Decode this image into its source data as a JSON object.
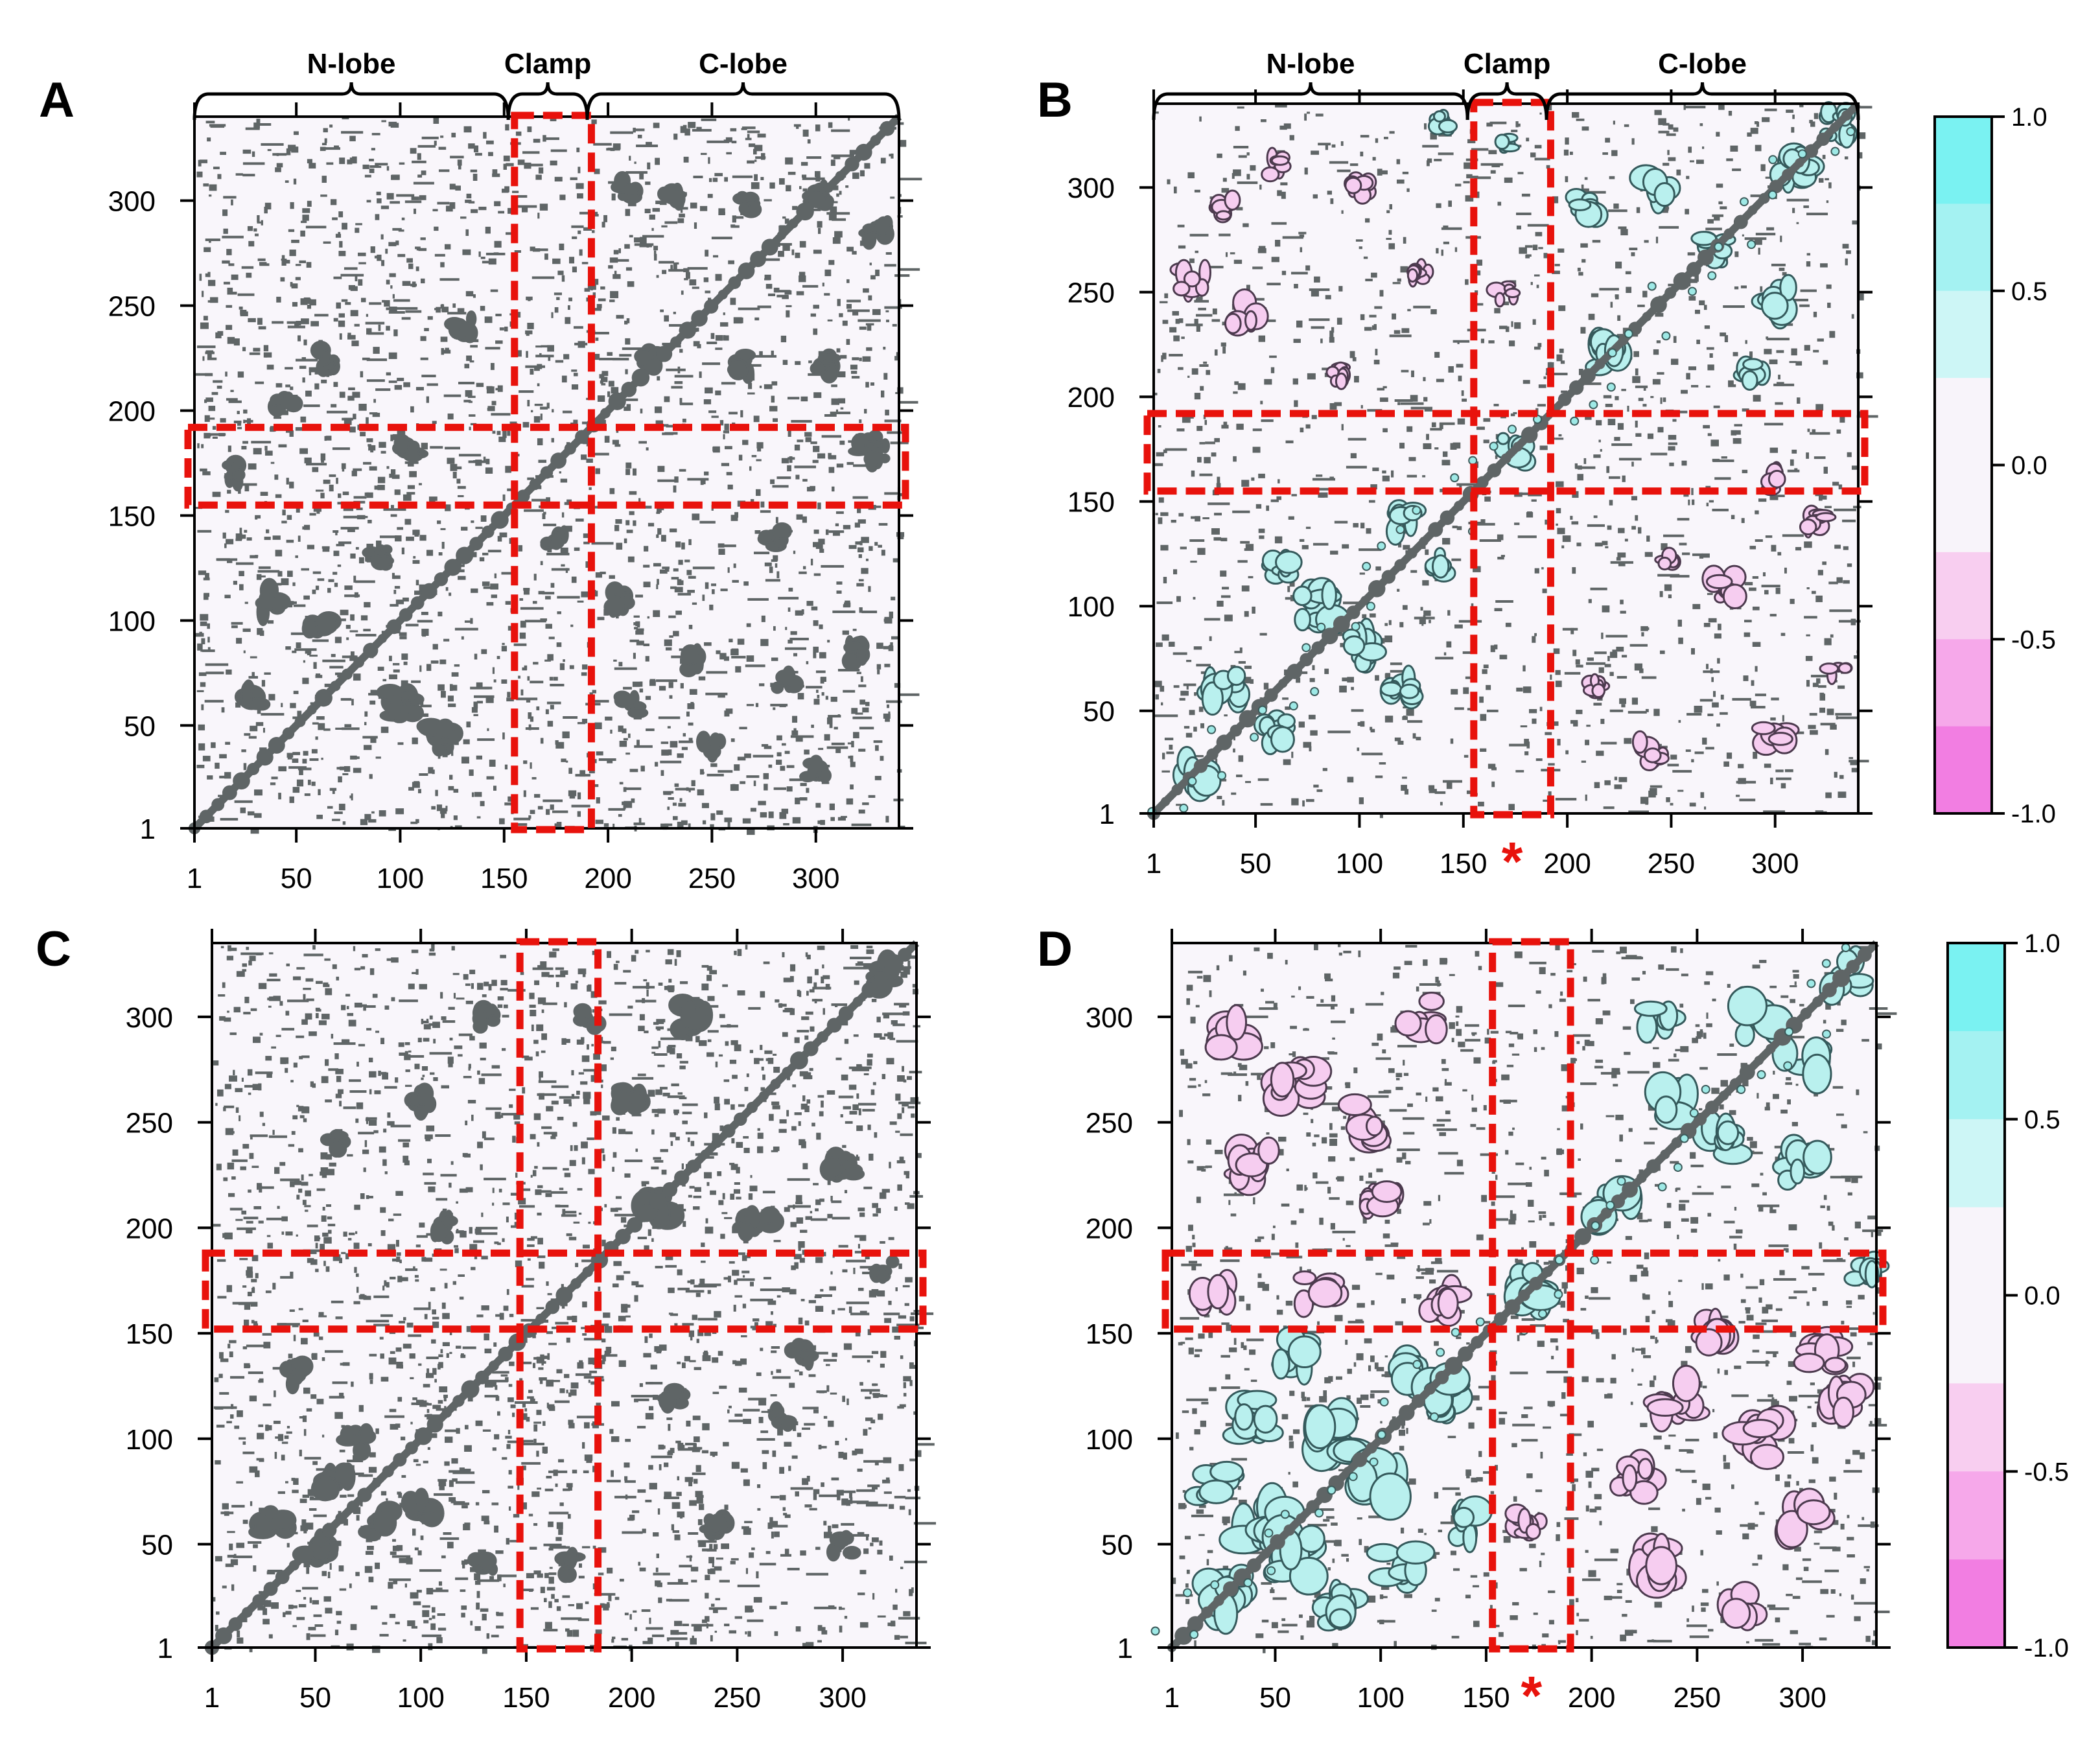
{
  "chart_data": [
    {
      "type": "heatmap",
      "panel_label": "A",
      "kind": "contact-map",
      "x_ticks": [
        "1",
        "50",
        "100",
        "150",
        "200",
        "250",
        "300"
      ],
      "y_ticks": [
        "1",
        "50",
        "100",
        "150",
        "200",
        "250",
        "300"
      ],
      "axis_range": [
        1,
        340
      ],
      "region_bracket": [
        {
          "label": "N-lobe",
          "start": 1,
          "end": 152
        },
        {
          "label": "Clamp",
          "start": 152,
          "end": 190
        },
        {
          "label": "C-lobe",
          "start": 190,
          "end": 340
        }
      ],
      "highlight_boxes": [
        {
          "orientation": "vertical",
          "range": [
            155,
            192
          ]
        },
        {
          "orientation": "horizontal",
          "range": [
            155,
            192
          ]
        }
      ],
      "star": "",
      "contact_clusters": [
        [
          210,
          305,
          3
        ],
        [
          230,
          300,
          3
        ],
        [
          265,
          300,
          3
        ],
        [
          300,
          302,
          3
        ],
        [
          330,
          285,
          3
        ],
        [
          220,
          225,
          3
        ],
        [
          265,
          222,
          3
        ],
        [
          305,
          222,
          3
        ],
        [
          325,
          185,
          3
        ],
        [
          45,
          205,
          3
        ],
        [
          65,
          225,
          3
        ],
        [
          40,
          110,
          4
        ],
        [
          60,
          95,
          4
        ],
        [
          100,
          60,
          4
        ],
        [
          120,
          45,
          4
        ],
        [
          90,
          130,
          3
        ],
        [
          30,
          60,
          4
        ],
        [
          205,
          110,
          3
        ],
        [
          240,
          80,
          3
        ],
        [
          285,
          70,
          3
        ],
        [
          320,
          85,
          3
        ],
        [
          210,
          60,
          3
        ],
        [
          250,
          40,
          3
        ],
        [
          300,
          30,
          3
        ],
        [
          175,
          140,
          3
        ],
        [
          130,
          240,
          3
        ],
        [
          105,
          180,
          3
        ],
        [
          280,
          140,
          3
        ],
        [
          20,
          170,
          3
        ],
        [
          330,
          180,
          3
        ]
      ]
    },
    {
      "type": "heatmap",
      "panel_label": "B",
      "kind": "correlation-map",
      "x_ticks": [
        "1",
        "50",
        "100",
        "150",
        "200",
        "250",
        "300"
      ],
      "y_ticks": [
        "1",
        "50",
        "100",
        "150",
        "200",
        "250",
        "300"
      ],
      "axis_range": [
        1,
        340
      ],
      "region_bracket": [
        {
          "label": "N-lobe",
          "start": 1,
          "end": 152
        },
        {
          "label": "Clamp",
          "start": 152,
          "end": 190
        },
        {
          "label": "C-lobe",
          "start": 190,
          "end": 340
        }
      ],
      "highlight_boxes": [
        {
          "orientation": "vertical",
          "range": [
            155,
            192
          ]
        },
        {
          "orientation": "horizontal",
          "range": [
            155,
            192
          ]
        }
      ],
      "star": "*",
      "colorbar": {
        "ticks": [
          "1.0",
          "0.5",
          "0.0",
          "-0.5",
          "-1.0"
        ],
        "range": [
          -1.0,
          1.0
        ],
        "levels": [
          "#7af2f2",
          "#a4f2f2",
          "#cdf6f6",
          "#f8f4fa",
          "#f8f4fa",
          "#f8cef0",
          "#f6a8ea",
          "#f27ee2"
        ]
      },
      "positive_clusters": [
        [
          20,
          20,
          5
        ],
        [
          35,
          60,
          5
        ],
        [
          60,
          40,
          4
        ],
        [
          80,
          100,
          5
        ],
        [
          100,
          80,
          5
        ],
        [
          120,
          140,
          4
        ],
        [
          140,
          120,
          4
        ],
        [
          60,
          120,
          4
        ],
        [
          120,
          60,
          4
        ],
        [
          220,
          220,
          5
        ],
        [
          245,
          300,
          5
        ],
        [
          300,
          245,
          5
        ],
        [
          270,
          270,
          4
        ],
        [
          310,
          310,
          5
        ],
        [
          330,
          330,
          4
        ],
        [
          290,
          210,
          4
        ],
        [
          210,
          290,
          4
        ],
        [
          175,
          175,
          4
        ],
        [
          140,
          330,
          3
        ],
        [
          170,
          320,
          3
        ]
      ],
      "negative_clusters": [
        [
          20,
          255,
          4
        ],
        [
          45,
          240,
          4
        ],
        [
          90,
          210,
          3
        ],
        [
          35,
          290,
          3
        ],
        [
          60,
          310,
          3
        ],
        [
          130,
          260,
          3
        ],
        [
          240,
          30,
          4
        ],
        [
          300,
          40,
          4
        ],
        [
          275,
          110,
          4
        ],
        [
          330,
          70,
          3
        ],
        [
          250,
          120,
          3
        ],
        [
          320,
          140,
          3
        ],
        [
          215,
          60,
          3
        ],
        [
          170,
          250,
          3
        ],
        [
          100,
          300,
          3
        ],
        [
          300,
          160,
          3
        ]
      ]
    },
    {
      "type": "heatmap",
      "panel_label": "C",
      "kind": "contact-map",
      "x_ticks": [
        "1",
        "50",
        "100",
        "150",
        "200",
        "250",
        "300"
      ],
      "y_ticks": [
        "1",
        "50",
        "100",
        "150",
        "200",
        "250",
        "300"
      ],
      "axis_range": [
        1,
        335
      ],
      "region_bracket": [],
      "highlight_boxes": [
        {
          "orientation": "vertical",
          "range": [
            147,
            184
          ]
        },
        {
          "orientation": "horizontal",
          "range": [
            152,
            188
          ]
        }
      ],
      "star": "",
      "contact_clusters": [
        [
          60,
          80,
          4
        ],
        [
          80,
          60,
          4
        ],
        [
          100,
          70,
          4
        ],
        [
          70,
          100,
          4
        ],
        [
          40,
          130,
          3
        ],
        [
          130,
          40,
          3
        ],
        [
          30,
          60,
          4
        ],
        [
          50,
          50,
          4
        ],
        [
          210,
          210,
          5
        ],
        [
          230,
          300,
          4
        ],
        [
          300,
          230,
          4
        ],
        [
          260,
          200,
          4
        ],
        [
          200,
          260,
          4
        ],
        [
          320,
          320,
          4
        ],
        [
          60,
          240,
          3
        ],
        [
          100,
          260,
          3
        ],
        [
          130,
          300,
          3
        ],
        [
          240,
          60,
          3
        ],
        [
          270,
          110,
          3
        ],
        [
          300,
          50,
          3
        ],
        [
          220,
          120,
          3
        ],
        [
          180,
          300,
          3
        ],
        [
          320,
          180,
          3
        ],
        [
          170,
          40,
          3
        ],
        [
          280,
          140,
          3
        ],
        [
          110,
          200,
          3
        ]
      ]
    },
    {
      "type": "heatmap",
      "panel_label": "D",
      "kind": "correlation-map",
      "x_ticks": [
        "1",
        "50",
        "100",
        "150",
        "200",
        "250",
        "300"
      ],
      "y_ticks": [
        "1",
        "50",
        "100",
        "150",
        "200",
        "250",
        "300"
      ],
      "axis_range": [
        1,
        335
      ],
      "region_bracket": [],
      "highlight_boxes": [
        {
          "orientation": "vertical",
          "range": [
            153,
            190
          ]
        },
        {
          "orientation": "horizontal",
          "range": [
            152,
            188
          ]
        }
      ],
      "star": "*",
      "colorbar": {
        "ticks": [
          "1.0",
          "0.5",
          "0.0",
          "-0.5",
          "-1.0"
        ],
        "range": [
          -1.0,
          1.0
        ],
        "levels": [
          "#7af2f2",
          "#a4f2f2",
          "#cdf6f6",
          "#f8f4fa",
          "#f8f4fa",
          "#f8cef0",
          "#f6a8ea",
          "#f27ee2"
        ]
      },
      "positive_clusters": [
        [
          25,
          25,
          7
        ],
        [
          45,
          60,
          7
        ],
        [
          60,
          45,
          7
        ],
        [
          80,
          100,
          7
        ],
        [
          100,
          80,
          7
        ],
        [
          120,
          130,
          6
        ],
        [
          130,
          120,
          6
        ],
        [
          40,
          110,
          6
        ],
        [
          110,
          40,
          6
        ],
        [
          60,
          140,
          5
        ],
        [
          140,
          60,
          5
        ],
        [
          20,
          80,
          5
        ],
        [
          80,
          20,
          5
        ],
        [
          170,
          170,
          6
        ],
        [
          210,
          210,
          6
        ],
        [
          240,
          260,
          6
        ],
        [
          260,
          240,
          6
        ],
        [
          280,
          300,
          6
        ],
        [
          300,
          280,
          6
        ],
        [
          320,
          320,
          5
        ],
        [
          230,
          300,
          5
        ],
        [
          300,
          230,
          5
        ],
        [
          330,
          180,
          4
        ]
      ],
      "negative_clusters": [
        [
          30,
          290,
          6
        ],
        [
          60,
          270,
          6
        ],
        [
          90,
          250,
          6
        ],
        [
          120,
          300,
          5
        ],
        [
          40,
          230,
          5
        ],
        [
          100,
          210,
          5
        ],
        [
          20,
          170,
          5
        ],
        [
          70,
          170,
          5
        ],
        [
          130,
          165,
          5
        ],
        [
          240,
          120,
          6
        ],
        [
          280,
          100,
          6
        ],
        [
          300,
          60,
          6
        ],
        [
          230,
          40,
          6
        ],
        [
          270,
          20,
          5
        ],
        [
          320,
          120,
          5
        ],
        [
          220,
          80,
          5
        ],
        [
          260,
          150,
          5
        ],
        [
          310,
          140,
          5
        ],
        [
          170,
          60,
          4
        ]
      ]
    }
  ]
}
